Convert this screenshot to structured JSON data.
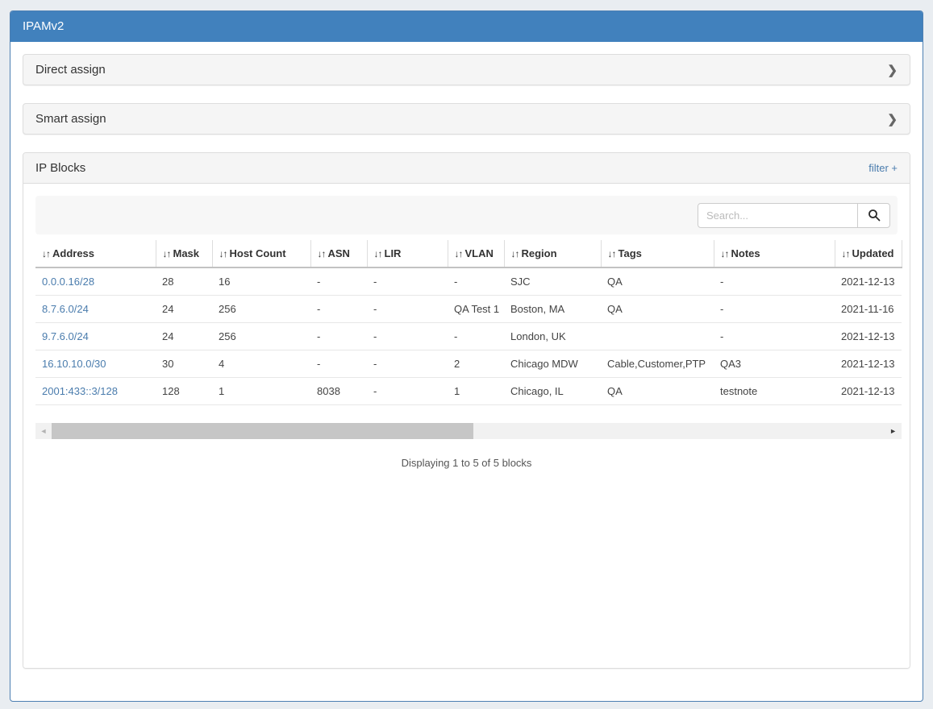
{
  "app": {
    "title": "IPAMv2"
  },
  "icons": {
    "sort": "↓↑",
    "chevron_right": "❯",
    "scroll_left": "◄",
    "scroll_right": "►"
  },
  "colors": {
    "header_bg": "#4181bd",
    "card_border": "#4d7fb2",
    "link": "#4a7cad",
    "page_bg": "#e9edf1",
    "panel_header_bg": "#f5f5f5"
  },
  "panels": {
    "direct_assign": {
      "title": "Direct assign"
    },
    "smart_assign": {
      "title": "Smart assign"
    },
    "ip_blocks": {
      "title": "IP Blocks",
      "filter_link": "filter +",
      "search": {
        "placeholder": "Search...",
        "value": ""
      },
      "table": {
        "columns": [
          "Address",
          "Mask",
          "Host Count",
          "ASN",
          "LIR",
          "VLAN",
          "Region",
          "Tags",
          "Notes",
          "Updated"
        ],
        "rows": [
          [
            "0.0.0.16/28",
            "28",
            "16",
            "-",
            "-",
            "-",
            "SJC",
            "QA",
            "-",
            "2021-12-13"
          ],
          [
            "8.7.6.0/24",
            "24",
            "256",
            "-",
            "-",
            "QA Test 1",
            "Boston, MA",
            "QA",
            "-",
            "2021-11-16"
          ],
          [
            "9.7.6.0/24",
            "24",
            "256",
            "-",
            "-",
            "-",
            "London, UK",
            "",
            "-",
            "2021-12-13"
          ],
          [
            "16.10.10.0/30",
            "30",
            "4",
            "-",
            "-",
            "2",
            "Chicago MDW",
            "Cable,Customer,PTP",
            "QA3",
            "2021-12-13"
          ],
          [
            "2001:433::3/128",
            "128",
            "1",
            "8038",
            "-",
            "1",
            "Chicago, IL",
            "QA",
            "testnote",
            "2021-12-13"
          ]
        ]
      },
      "status": "Displaying 1 to 5 of 5 blocks"
    }
  }
}
